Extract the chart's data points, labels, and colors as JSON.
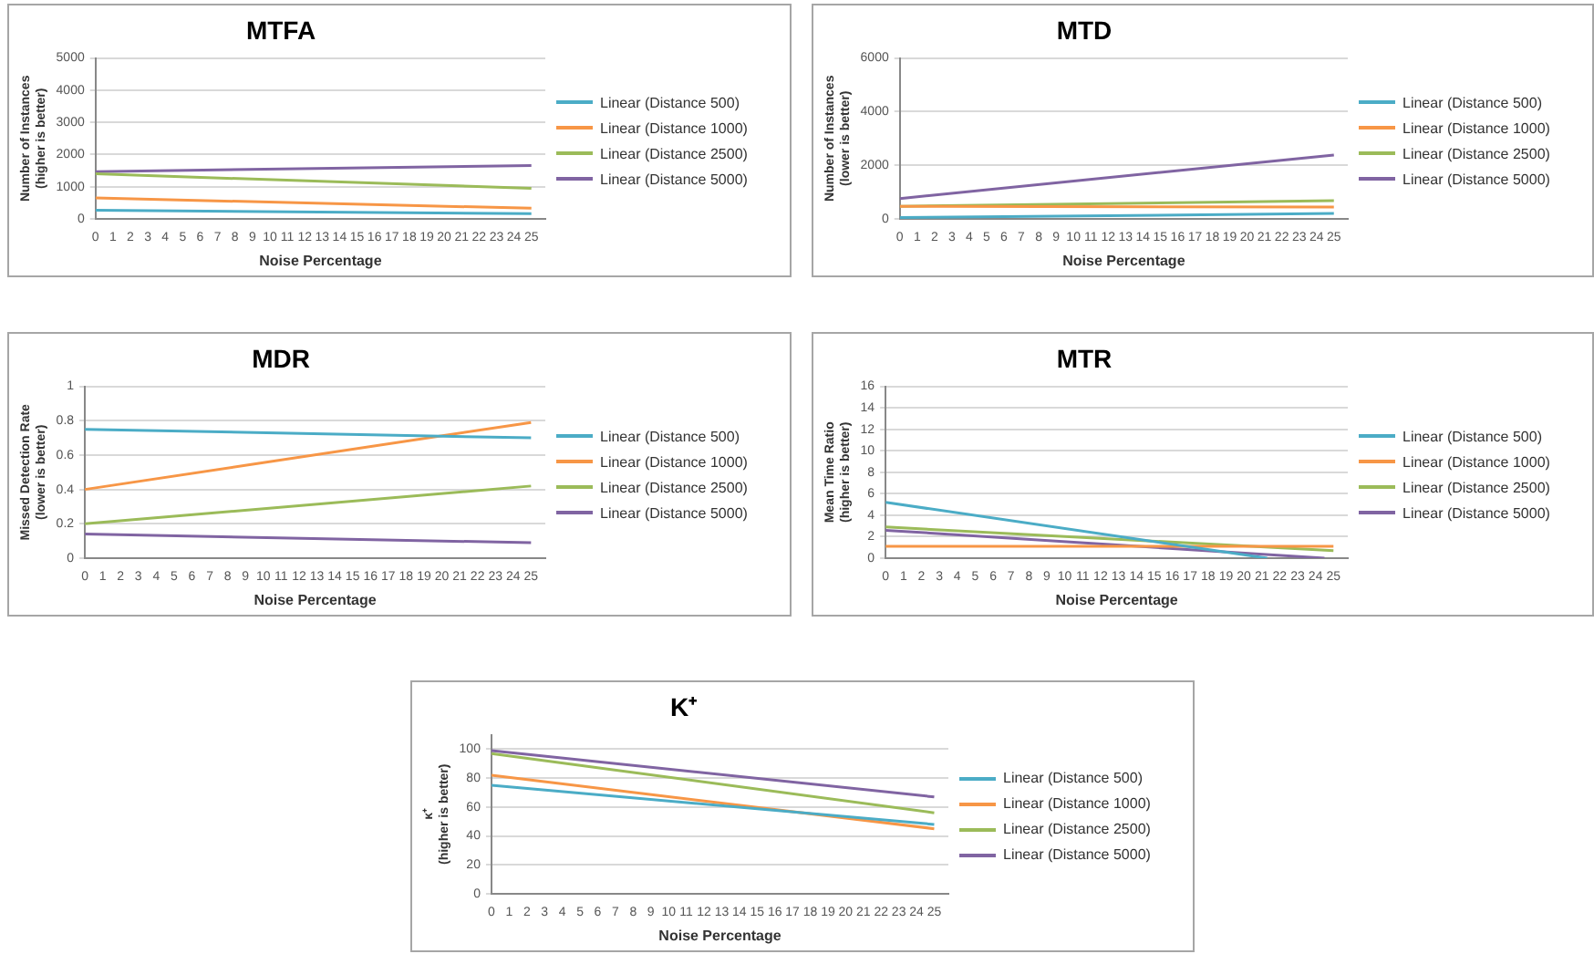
{
  "chart_data": [
    {
      "type": "line",
      "title": "MTFA",
      "xlabel": "Noise Percentage",
      "ylabel": "Number of Instances\n(higher is better)",
      "xlim": [
        0,
        25.8
      ],
      "xticks": [
        0,
        1,
        2,
        3,
        4,
        5,
        6,
        7,
        8,
        9,
        10,
        11,
        12,
        13,
        14,
        15,
        16,
        17,
        18,
        19,
        20,
        21,
        22,
        23,
        24,
        25
      ],
      "ylim": [
        0,
        5000
      ],
      "yticks": [
        0,
        1000,
        2000,
        3000,
        4000,
        5000
      ],
      "grid": "y",
      "legend": "right",
      "marker": "none",
      "line_style": "solid",
      "series": [
        {
          "name": "Linear (Distance 500)",
          "color": "#4bacc6",
          "x": [
            0,
            25
          ],
          "values": [
            270,
            160
          ]
        },
        {
          "name": "Linear (Distance 1000)",
          "color": "#f79646",
          "x": [
            0,
            25
          ],
          "values": [
            650,
            330
          ]
        },
        {
          "name": "Linear (Distance 2500)",
          "color": "#9bbb59",
          "x": [
            0,
            25
          ],
          "values": [
            1400,
            950
          ]
        },
        {
          "name": "Linear (Distance 5000)",
          "color": "#8064a2",
          "x": [
            0,
            25
          ],
          "values": [
            1470,
            1660
          ]
        }
      ]
    },
    {
      "type": "line",
      "title": "MTD",
      "xlabel": "Noise Percentage",
      "ylabel": "Number of Instances\n(lower is better)",
      "xlim": [
        0,
        25.8
      ],
      "xticks": [
        0,
        1,
        2,
        3,
        4,
        5,
        6,
        7,
        8,
        9,
        10,
        11,
        12,
        13,
        14,
        15,
        16,
        17,
        18,
        19,
        20,
        21,
        22,
        23,
        24,
        25
      ],
      "ylim": [
        0,
        6000
      ],
      "yticks": [
        0,
        2000,
        4000,
        6000
      ],
      "grid": "y",
      "legend": "right",
      "marker": "none",
      "line_style": "solid",
      "series": [
        {
          "name": "Linear (Distance 500)",
          "color": "#4bacc6",
          "x": [
            0,
            25
          ],
          "values": [
            50,
            200
          ]
        },
        {
          "name": "Linear (Distance 1000)",
          "color": "#f79646",
          "x": [
            0,
            25
          ],
          "values": [
            470,
            440
          ]
        },
        {
          "name": "Linear (Distance 2500)",
          "color": "#9bbb59",
          "x": [
            0,
            25
          ],
          "values": [
            470,
            680
          ]
        },
        {
          "name": "Linear (Distance 5000)",
          "color": "#8064a2",
          "x": [
            0,
            25
          ],
          "values": [
            760,
            2380
          ]
        }
      ]
    },
    {
      "type": "line",
      "title": "MDR",
      "xlabel": "Noise Percentage",
      "ylabel": "Missed Detection Rate\n(lower is better)",
      "xlim": [
        0,
        25.8
      ],
      "xticks": [
        0,
        1,
        2,
        3,
        4,
        5,
        6,
        7,
        8,
        9,
        10,
        11,
        12,
        13,
        14,
        15,
        16,
        17,
        18,
        19,
        20,
        21,
        22,
        23,
        24,
        25
      ],
      "ylim": [
        0,
        1
      ],
      "yticks": [
        0,
        0.2,
        0.4,
        0.6,
        0.8,
        1
      ],
      "grid": "y",
      "legend": "right",
      "marker": "none",
      "line_style": "solid",
      "series": [
        {
          "name": "Linear (Distance 500)",
          "color": "#4bacc6",
          "x": [
            0,
            25
          ],
          "values": [
            0.75,
            0.7
          ]
        },
        {
          "name": "Linear (Distance 1000)",
          "color": "#f79646",
          "x": [
            0,
            25
          ],
          "values": [
            0.4,
            0.79
          ]
        },
        {
          "name": "Linear (Distance 2500)",
          "color": "#9bbb59",
          "x": [
            0,
            25
          ],
          "values": [
            0.2,
            0.42
          ]
        },
        {
          "name": "Linear (Distance 5000)",
          "color": "#8064a2",
          "x": [
            0,
            25
          ],
          "values": [
            0.14,
            0.09
          ]
        }
      ]
    },
    {
      "type": "line",
      "title": "MTR",
      "xlabel": "Noise Percentage",
      "ylabel": "Mean Time Ratio\n(higher is better)",
      "xlim": [
        0,
        25.8
      ],
      "xticks": [
        0,
        1,
        2,
        3,
        4,
        5,
        6,
        7,
        8,
        9,
        10,
        11,
        12,
        13,
        14,
        15,
        16,
        17,
        18,
        19,
        20,
        21,
        22,
        23,
        24,
        25
      ],
      "ylim": [
        0,
        16
      ],
      "yticks": [
        0,
        2,
        4,
        6,
        8,
        10,
        12,
        14,
        16
      ],
      "grid": "y",
      "legend": "right",
      "marker": "none",
      "line_style": "solid",
      "series": [
        {
          "name": "Linear (Distance 500)",
          "color": "#4bacc6",
          "x": [
            0,
            21.3
          ],
          "values": [
            5.2,
            0
          ]
        },
        {
          "name": "Linear (Distance 1000)",
          "color": "#f79646",
          "x": [
            0,
            25
          ],
          "values": [
            1.1,
            1.1
          ]
        },
        {
          "name": "Linear (Distance 2500)",
          "color": "#9bbb59",
          "x": [
            0,
            25
          ],
          "values": [
            2.9,
            0.7
          ]
        },
        {
          "name": "Linear (Distance 5000)",
          "color": "#8064a2",
          "x": [
            0,
            24.5
          ],
          "values": [
            2.6,
            0
          ]
        }
      ]
    },
    {
      "type": "line",
      "title": "K⁺",
      "xlabel": "Noise Percentage",
      "ylabel": "κ⁺\n(higher is better)",
      "xlim": [
        0,
        25.8
      ],
      "xticks": [
        0,
        1,
        2,
        3,
        4,
        5,
        6,
        7,
        8,
        9,
        10,
        11,
        12,
        13,
        14,
        15,
        16,
        17,
        18,
        19,
        20,
        21,
        22,
        23,
        24,
        25
      ],
      "ylim": [
        0,
        110
      ],
      "yticks": [
        0,
        20,
        40,
        60,
        80,
        100
      ],
      "grid": "y",
      "legend": "right",
      "marker": "none",
      "line_style": "solid",
      "series": [
        {
          "name": "Linear (Distance 500)",
          "color": "#4bacc6",
          "x": [
            0,
            25
          ],
          "values": [
            75,
            48
          ]
        },
        {
          "name": "Linear (Distance 1000)",
          "color": "#f79646",
          "x": [
            0,
            25
          ],
          "values": [
            82,
            45
          ]
        },
        {
          "name": "Linear (Distance 2500)",
          "color": "#9bbb59",
          "x": [
            0,
            25
          ],
          "values": [
            97,
            56
          ]
        },
        {
          "name": "Linear (Distance 5000)",
          "color": "#8064a2",
          "x": [
            0,
            25
          ],
          "values": [
            99,
            67
          ]
        }
      ]
    }
  ]
}
